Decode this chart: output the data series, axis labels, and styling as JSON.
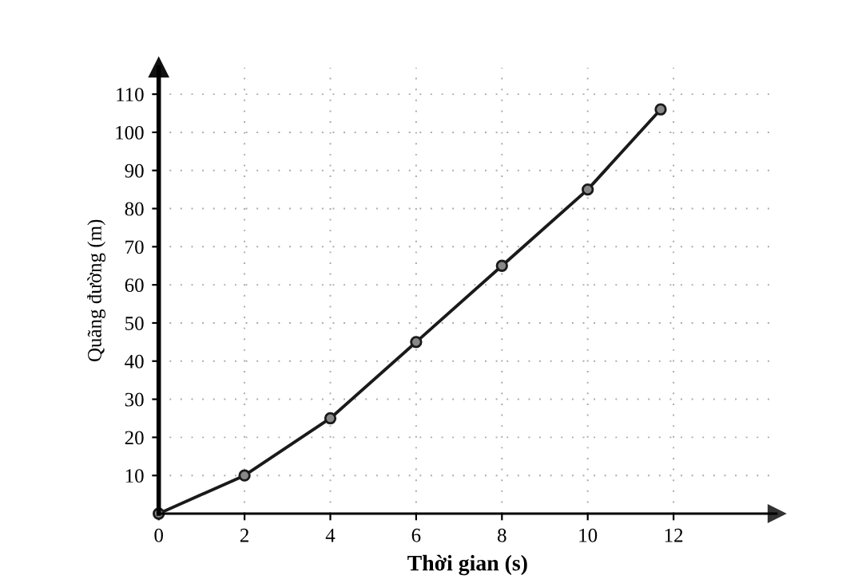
{
  "chart_data": {
    "type": "line",
    "xlabel": "Thời gian (s)",
    "ylabel": "Quãng đường (m)",
    "x": [
      0,
      2,
      4,
      6,
      8,
      10,
      11.7
    ],
    "series": [
      {
        "color": "#1a1a1a",
        "values": [
          0,
          10,
          25,
          45,
          65,
          85,
          106
        ]
      }
    ],
    "xlim": [
      0,
      14.4
    ],
    "ylim": [
      0,
      117
    ],
    "xticks": [
      0,
      2,
      4,
      6,
      8,
      10,
      12
    ],
    "yticks": [
      10,
      20,
      30,
      40,
      50,
      60,
      70,
      80,
      90,
      100,
      110
    ],
    "grid": true,
    "marker": "circle",
    "line_style": "solid",
    "legend": false
  }
}
